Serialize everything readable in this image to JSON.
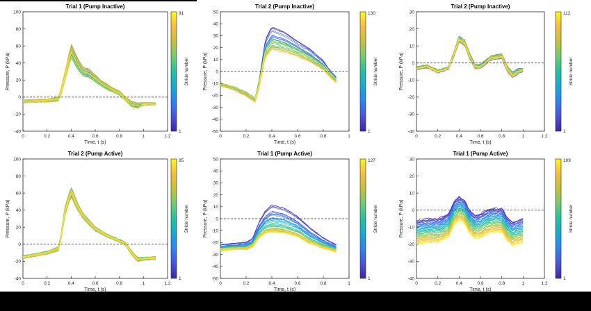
{
  "colors": {
    "colormap": [
      "#3e26a8",
      "#4a52e0",
      "#2c83f6",
      "#13abd4",
      "#22c1a0",
      "#70cc6f",
      "#c3c13c",
      "#f8ba3f",
      "#f9fb15"
    ],
    "dashed_line": "#333333",
    "axis": "#262626"
  },
  "chart_data": [
    {
      "type": "line",
      "title": "Trial 1 (Pump Inactive)",
      "xlabel": "Time, t (s)",
      "ylabel": "Pressure, P (kPa)",
      "xlim": [
        0,
        1.2
      ],
      "ylim": [
        -40,
        100
      ],
      "xticks": [
        "0",
        "0.2",
        "0.4",
        "0.6",
        "0.8",
        "1",
        "1.2"
      ],
      "yticks": [
        "-40",
        "-20",
        "0",
        "20",
        "40",
        "60",
        "80",
        "100"
      ],
      "reference_line": 0,
      "colorbar": {
        "label": "Stride number",
        "min": "1",
        "max": "91"
      },
      "strides": 40,
      "x": [
        0,
        0.2,
        0.3,
        0.35,
        0.4,
        0.45,
        0.5,
        0.55,
        0.6,
        0.65,
        0.7,
        0.75,
        0.8,
        0.85,
        0.9,
        0.95,
        1.0,
        1.1
      ],
      "y": [
        -5,
        -4,
        -2,
        25,
        55,
        40,
        30,
        28,
        22,
        16,
        12,
        8,
        5,
        -2,
        -8,
        -10,
        -8,
        -8
      ],
      "spread": [
        2,
        2,
        3,
        6,
        10,
        8,
        6,
        6,
        5,
        4,
        4,
        3,
        3,
        3,
        4,
        4,
        2,
        2
      ]
    },
    {
      "type": "line",
      "title": "Trial 2 (Pump Inactive)",
      "xlabel": "Time, t (s)",
      "ylabel": "Pressure, P (kPa)",
      "xlim": [
        0,
        1
      ],
      "ylim": [
        -50,
        50
      ],
      "xticks": [
        "0",
        "0.2",
        "0.4",
        "0.6",
        "0.8",
        "1"
      ],
      "yticks": [
        "-50",
        "-40",
        "-30",
        "-20",
        "-10",
        "0",
        "10",
        "20",
        "30",
        "40",
        "50"
      ],
      "reference_line": 0,
      "colorbar": {
        "label": "Stride number",
        "min": "1",
        "max": "130"
      },
      "strides": 34,
      "x": [
        0,
        0.1,
        0.2,
        0.27,
        0.3,
        0.35,
        0.4,
        0.5,
        0.6,
        0.7,
        0.8,
        0.85,
        0.9
      ],
      "y": [
        -11,
        -14,
        -19,
        -24,
        -12,
        15,
        22,
        19,
        15,
        10,
        3,
        -3,
        -8
      ],
      "spread": [
        1.5,
        1.5,
        2,
        2,
        3,
        4,
        5,
        4,
        3,
        3,
        2,
        2,
        2
      ],
      "top_spread": [
        0,
        0,
        0,
        0,
        2,
        10,
        13,
        12,
        9,
        7,
        5,
        3,
        2
      ]
    },
    {
      "type": "line",
      "title": "Trial 2 (Pump Inactive)",
      "xlabel": "Time, t (s)",
      "ylabel": "Pressure, P (kPa)",
      "xlim": [
        0,
        1.2
      ],
      "ylim": [
        -40,
        30
      ],
      "xticks": [
        "0",
        "0.2",
        "0.4",
        "0.6",
        "0.8",
        "1",
        "1.2"
      ],
      "yticks": [
        "-40",
        "-30",
        "-20",
        "-10",
        "0",
        "10",
        "20",
        "30"
      ],
      "reference_line": 0,
      "colorbar": {
        "label": "Stride number",
        "min": "1",
        "max": "112"
      },
      "strides": 30,
      "x": [
        0,
        0.1,
        0.2,
        0.3,
        0.35,
        0.4,
        0.45,
        0.5,
        0.55,
        0.6,
        0.7,
        0.8,
        0.85,
        0.9,
        0.95,
        1.0
      ],
      "y": [
        -3,
        -2,
        -5,
        -3,
        5,
        14,
        12,
        4,
        -2,
        -2,
        3,
        4,
        -3,
        -7,
        -5,
        -4
      ],
      "spread": [
        1,
        1,
        1,
        1,
        1.5,
        2,
        2,
        2,
        1.5,
        1.5,
        1.5,
        1.5,
        2,
        2,
        2,
        1
      ]
    },
    {
      "type": "line",
      "title": "Trial 2 (Pump Active)",
      "xlabel": "Time, t (s)",
      "ylabel": "Pressure, P (kPa)",
      "xlim": [
        0,
        1.2
      ],
      "ylim": [
        -40,
        100
      ],
      "xticks": [
        "0",
        "0.2",
        "0.4",
        "0.6",
        "0.8",
        "1",
        "1.2"
      ],
      "yticks": [
        "-40",
        "-20",
        "0",
        "20",
        "40",
        "60",
        "80",
        "100"
      ],
      "reference_line": 0,
      "colorbar": {
        "label": "Stride number",
        "min": "1",
        "max": "95"
      },
      "strides": 40,
      "x": [
        0,
        0.2,
        0.3,
        0.35,
        0.4,
        0.45,
        0.5,
        0.6,
        0.7,
        0.8,
        0.85,
        0.9,
        0.95,
        1.0,
        1.1
      ],
      "y": [
        -15,
        -10,
        -5,
        40,
        62,
        45,
        33,
        18,
        10,
        4,
        1,
        -10,
        -18,
        -17,
        -16
      ],
      "spread": [
        2,
        2,
        3,
        6,
        7,
        5,
        4,
        3,
        2,
        2,
        2,
        3,
        3,
        2,
        2
      ]
    },
    {
      "type": "line",
      "title": "Trial 1 (Pump Active)",
      "xlabel": "Time, t (s)",
      "ylabel": "Pressure, P (kPa)",
      "xlim": [
        0,
        1
      ],
      "ylim": [
        -50,
        50
      ],
      "xticks": [
        "0",
        "0.2",
        "0.4",
        "0.6",
        "0.8",
        "1"
      ],
      "yticks": [
        "-50",
        "-40",
        "-30",
        "-20",
        "-10",
        "0",
        "10",
        "20",
        "30",
        "40",
        "50"
      ],
      "reference_line": 0,
      "colorbar": {
        "label": "Stride number",
        "min": "1",
        "max": "127"
      },
      "strides": 40,
      "x": [
        0,
        0.1,
        0.2,
        0.25,
        0.3,
        0.35,
        0.4,
        0.5,
        0.6,
        0.7,
        0.8,
        0.9
      ],
      "y": [
        -26,
        -25,
        -25,
        -23,
        -15,
        -11,
        -10,
        -11,
        -14,
        -20,
        -24,
        -27
      ],
      "spread": [
        1.5,
        1.5,
        1.5,
        2,
        2,
        2,
        2,
        2,
        2,
        2,
        1.5,
        1.5
      ],
      "top_spread": [
        4,
        4,
        5,
        6,
        12,
        18,
        22,
        20,
        16,
        12,
        8,
        5
      ]
    },
    {
      "type": "line",
      "title": "Trial 1 (Pump Active)",
      "xlabel": "Time, t (s)",
      "ylabel": "Pressure, P (kPa)",
      "xlim": [
        0,
        1.2
      ],
      "ylim": [
        -40,
        30
      ],
      "xticks": [
        "0",
        "0.2",
        "0.4",
        "0.6",
        "0.8",
        "1",
        "1.2"
      ],
      "yticks": [
        "-40",
        "-30",
        "-20",
        "-10",
        "0",
        "10",
        "20",
        "30"
      ],
      "reference_line": 0,
      "colorbar": {
        "label": "Stride number",
        "min": "1",
        "max": "109"
      },
      "strides": 50,
      "x": [
        0,
        0.1,
        0.2,
        0.3,
        0.35,
        0.4,
        0.45,
        0.5,
        0.55,
        0.6,
        0.7,
        0.8,
        0.85,
        0.9,
        0.95,
        1.0
      ],
      "y": [
        -6,
        -5,
        -5,
        -2,
        5,
        8,
        6,
        0,
        -3,
        -2,
        1,
        1,
        -4,
        -7,
        -6,
        -5
      ],
      "sweep": [
        -6,
        -20
      ]
    }
  ]
}
